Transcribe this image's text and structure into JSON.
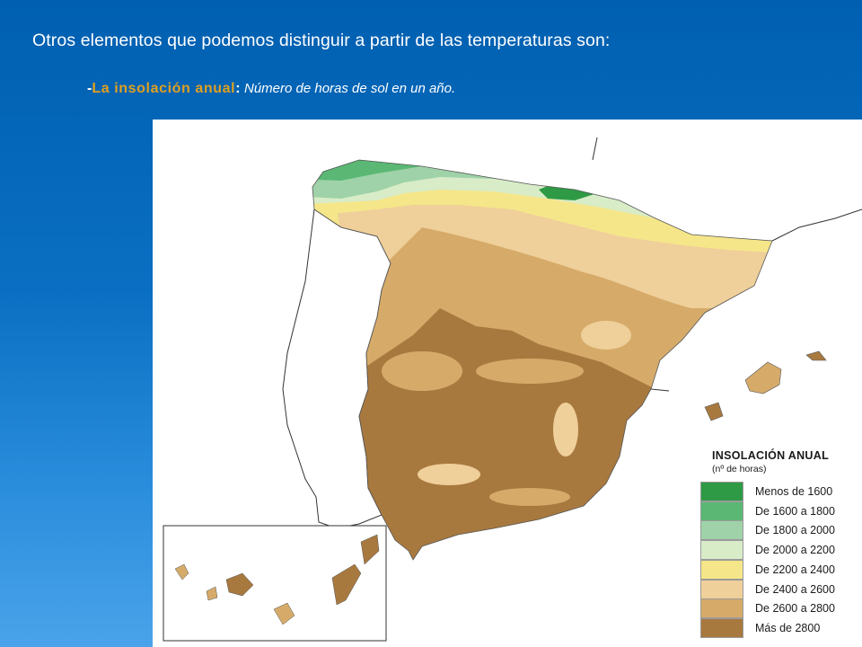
{
  "slide": {
    "title": "Otros elementos que podemos distinguir a partir de las temperaturas son:",
    "subtitle": {
      "dash": "-",
      "term": "La insolación anual",
      "colon": ":",
      "description": "Número de horas de sol en un año."
    }
  },
  "map": {
    "legend_title": "INSOLACIÓN ANUAL",
    "legend_subtitle": "(nº de horas)",
    "legend_items": [
      {
        "label": "Menos de 1600",
        "color": "#2e9a45"
      },
      {
        "label": "De 1600 a 1800",
        "color": "#5ab874"
      },
      {
        "label": "De 1800 a 2000",
        "color": "#9fd2a8"
      },
      {
        "label": "De 2000 a 2200",
        "color": "#d8ecc8"
      },
      {
        "label": "De 2200 a 2400",
        "color": "#f5e68a"
      },
      {
        "label": "De 2400 a 2600",
        "color": "#efcf9a"
      },
      {
        "label": "De 2600 a 2800",
        "color": "#d6ab6a"
      },
      {
        "label": "Más de 2800",
        "color": "#a8793f"
      }
    ]
  }
}
